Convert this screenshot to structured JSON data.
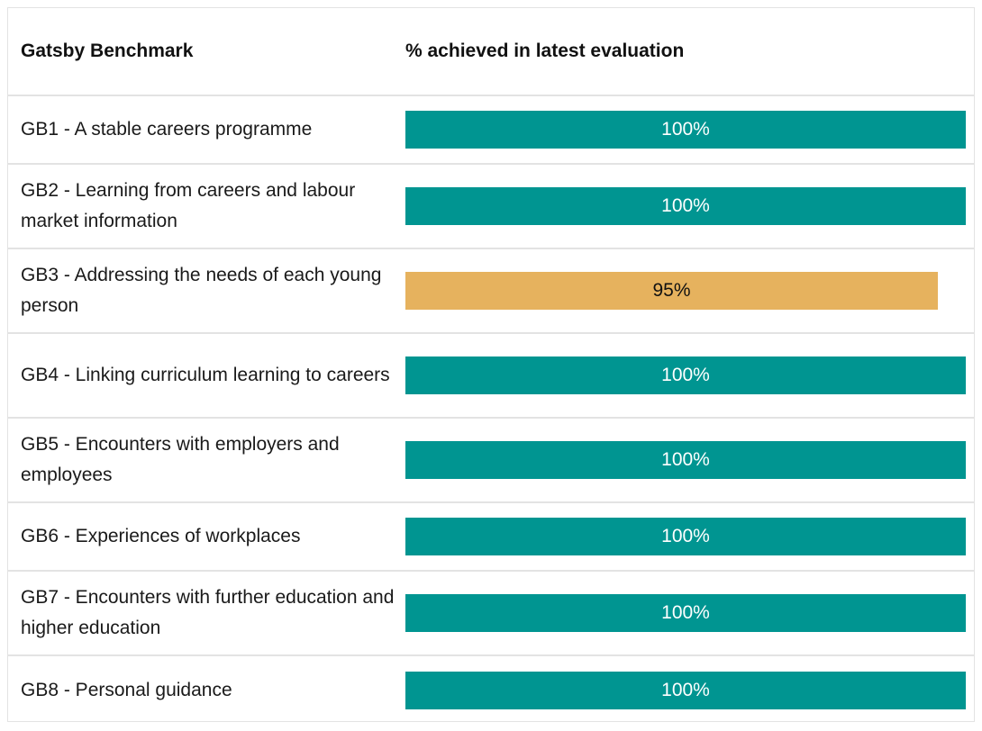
{
  "header": {
    "benchmark_label": "Gatsby Benchmark",
    "percent_label": "% achieved in latest evaluation"
  },
  "colors": {
    "full": "#009591",
    "partial": "#e6b25e",
    "full_text": "#ffffff",
    "partial_text": "#111111"
  },
  "chart_data": {
    "type": "bar",
    "orientation": "horizontal",
    "title": "",
    "xlabel": "% achieved in latest evaluation",
    "ylabel": "Gatsby Benchmark",
    "xlim": [
      0,
      100
    ],
    "categories": [
      "GB1 - A stable careers programme",
      "GB2 - Learning from careers and labour market information",
      "GB3 - Addressing the needs of each young person",
      "GB4 - Linking curriculum learning to careers",
      "GB5 - Encounters with employers and employees",
      "GB6 - Experiences of workplaces",
      "GB7 - Encounters with further education and higher education",
      "GB8 - Personal guidance"
    ],
    "values": [
      100,
      100,
      95,
      100,
      100,
      100,
      100,
      100
    ],
    "value_labels": [
      "100%",
      "100%",
      "95%",
      "100%",
      "100%",
      "100%",
      "100%",
      "100%"
    ]
  }
}
